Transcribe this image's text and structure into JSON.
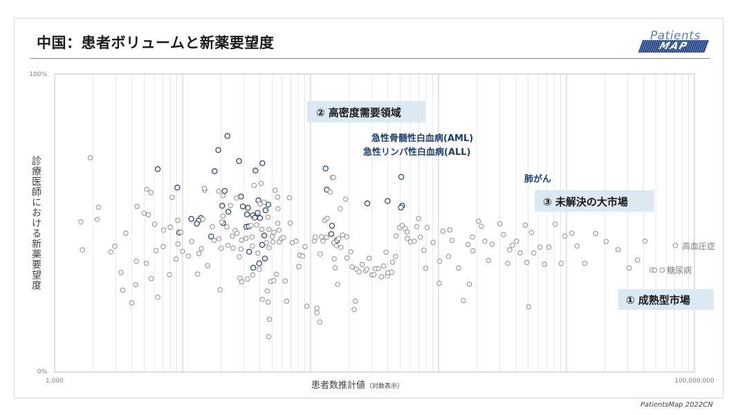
{
  "title": "中国：患者ボリュームと新薬要望度",
  "logo": {
    "top": "Patients",
    "bottom": "MAP"
  },
  "footer": "PatientsMap 2022CN",
  "colors": {
    "highlight": "#1f3e6e",
    "normal": "#8c8c8c",
    "label_box": "#dce9f2",
    "grid": "#dcdcdc"
  },
  "chart_data": {
    "type": "scatter",
    "xlabel": "患者数推計値",
    "xlabel_note": "（対数表示）",
    "ylabel": "診療医師における新薬要望度",
    "x_scale": "log",
    "xlim": [
      1000,
      100000000
    ],
    "ylim": [
      0,
      100
    ],
    "x_tick_labels": [
      "1,000",
      "100,000,000"
    ],
    "y_tick_labels": [
      "0%",
      "100%"
    ],
    "grid": "vertical log minor gridlines",
    "zone_labels": [
      "② 高密度需要領域",
      "③ 未解決の大市場",
      "① 成熟型市場"
    ],
    "annotations": [
      {
        "text": "急性骨髄性白血病(AML)",
        "x": 22400,
        "y": 79.2
      },
      {
        "text": "急性リンパ性白血病(ALL)",
        "x": 19000,
        "y": 74.5
      },
      {
        "text": "肺がん",
        "x": 511000,
        "y": 65.5
      },
      {
        "text": "高血圧症",
        "x": 71000000,
        "y": 42.5
      },
      {
        "text": "糖尿病",
        "x": 49000000,
        "y": 34.2
      }
    ],
    "series": [
      {
        "points": [
          [
            22400,
            79.2
          ],
          [
            19000,
            74.5
          ],
          [
            511000,
            65.5
          ],
          [
            17800,
            67.4
          ],
          [
            6400,
            68.1
          ],
          [
            27600,
            70.8
          ],
          [
            37100,
            67.6
          ],
          [
            42000,
            70.1
          ],
          [
            131000,
            68.3
          ],
          [
            9100,
            61.9
          ],
          [
            21300,
            60.8
          ],
          [
            28600,
            58.9
          ],
          [
            39100,
            57.6
          ],
          [
            134000,
            61.2
          ],
          [
            278000,
            56.6
          ],
          [
            20400,
            55.8
          ],
          [
            32400,
            55.1
          ],
          [
            46800,
            56.2
          ],
          [
            13900,
            51.7
          ],
          [
            20700,
            50.0
          ],
          [
            31500,
            48.7
          ],
          [
            13300,
            50.8
          ],
          [
            12900,
            49.8
          ],
          [
            11700,
            51.4
          ],
          [
            9400,
            46.8
          ],
          [
            16700,
            45.5
          ],
          [
            145000,
            46.3
          ],
          [
            147000,
            49.1
          ],
          [
            161000,
            44.2
          ],
          [
            33100,
            40.4
          ],
          [
            41800,
            42.7
          ],
          [
            44000,
            38.1
          ],
          [
            39700,
            36.5
          ],
          [
            35700,
            35.0
          ],
          [
            520000,
            55.8
          ],
          [
            508000,
            55.2
          ],
          [
            400000,
            57.4
          ],
          [
            31900,
            52.9
          ],
          [
            38600,
            53.4
          ],
          [
            44500,
            54.3
          ],
          [
            40300,
            51.7
          ],
          [
            29600,
            55.6
          ],
          [
            35400,
            52.6
          ],
          [
            36700,
            51.8
          ],
          [
            22800,
            53.8
          ],
          [
            43500,
            45.8
          ],
          [
            33000,
            48.9
          ]
        ]
      },
      {
        "points": [
          [
            1900,
            71.9
          ],
          [
            2200,
            55.3
          ],
          [
            2150,
            51.2
          ],
          [
            1600,
            50.4
          ],
          [
            1650,
            41.0
          ],
          [
            2750,
            40.3
          ],
          [
            2950,
            42.2
          ],
          [
            3300,
            33.4
          ],
          [
            3600,
            46.6
          ],
          [
            4000,
            23.2
          ],
          [
            4350,
            37.2
          ],
          [
            4300,
            29.3
          ],
          [
            4400,
            55.6
          ],
          [
            3400,
            27.5
          ],
          [
            5250,
            61.3
          ],
          [
            5650,
            60.2
          ],
          [
            5400,
            52.8
          ],
          [
            5200,
            36.5
          ],
          [
            5700,
            31.4
          ],
          [
            5000,
            53.3
          ],
          [
            6050,
            49.6
          ],
          [
            6200,
            40.8
          ],
          [
            6400,
            25.1
          ],
          [
            7100,
            47.6
          ],
          [
            7050,
            42.1
          ],
          [
            7900,
            32.7
          ],
          [
            8300,
            58.6
          ],
          [
            8000,
            48.6
          ],
          [
            9150,
            50.9
          ],
          [
            9200,
            43.0
          ],
          [
            9700,
            47.0
          ],
          [
            8900,
            37.9
          ],
          [
            10000,
            40.5
          ],
          [
            11100,
            38.9
          ],
          [
            11800,
            43.8
          ],
          [
            13100,
            32.9
          ],
          [
            13400,
            39.8
          ],
          [
            14000,
            41.4
          ],
          [
            14400,
            51.3
          ],
          [
            14900,
            61.0
          ],
          [
            15700,
            35.7
          ],
          [
            14800,
            61.6
          ],
          [
            17100,
            48.8
          ],
          [
            17600,
            44.2
          ],
          [
            19200,
            44.7
          ],
          [
            20200,
            50.4
          ],
          [
            20000,
            41.5
          ],
          [
            19600,
            27.6
          ],
          [
            19100,
            60.7
          ],
          [
            20700,
            59.2
          ],
          [
            20700,
            52.4
          ],
          [
            22200,
            48.7
          ],
          [
            22600,
            42.5
          ],
          [
            23700,
            55.9
          ],
          [
            24500,
            45.6
          ],
          [
            24800,
            41.6
          ],
          [
            25800,
            47.5
          ],
          [
            26400,
            58.4
          ],
          [
            26600,
            46.6
          ],
          [
            27800,
            38.7
          ],
          [
            28900,
            44.3
          ],
          [
            28100,
            31.5
          ],
          [
            29000,
            30.3
          ],
          [
            28600,
            41.3
          ],
          [
            31300,
            44.9
          ],
          [
            32100,
            31.2
          ],
          [
            34200,
            49.2
          ],
          [
            34900,
            45.3
          ],
          [
            35100,
            42.3
          ],
          [
            36200,
            62.6
          ],
          [
            35300,
            32.6
          ],
          [
            37900,
            49.4
          ],
          [
            38800,
            39.9
          ],
          [
            39800,
            34.5
          ],
          [
            41100,
            63.3
          ],
          [
            40300,
            56.4
          ],
          [
            41700,
            47.9
          ],
          [
            41900,
            24.4
          ],
          [
            43300,
            57.0
          ],
          [
            45200,
            43.4
          ],
          [
            47200,
            47.9
          ],
          [
            46500,
            52.0
          ],
          [
            47400,
            41.7
          ],
          [
            50100,
            45.5
          ],
          [
            50800,
            43.7
          ],
          [
            48800,
            30.4
          ],
          [
            47800,
            17.7
          ],
          [
            47100,
            11.9
          ],
          [
            45900,
            27.2
          ],
          [
            46600,
            23.5
          ],
          [
            51700,
            30.7
          ],
          [
            51600,
            46.9
          ],
          [
            52900,
            61.0
          ],
          [
            55300,
            58.7
          ],
          [
            55700,
            54.8
          ],
          [
            55400,
            49.9
          ],
          [
            54100,
            32.8
          ],
          [
            56600,
            47.6
          ],
          [
            57000,
            43.7
          ],
          [
            59000,
            44.8
          ],
          [
            61400,
            45.1
          ],
          [
            63400,
            30.6
          ],
          [
            65000,
            23.8
          ],
          [
            68400,
            58.5
          ],
          [
            69300,
            50.0
          ],
          [
            71900,
            43.4
          ],
          [
            77000,
            43.9
          ],
          [
            80900,
            35.4
          ],
          [
            82700,
            39.2
          ],
          [
            86500,
            38.9
          ],
          [
            90400,
            42.1
          ],
          [
            93500,
            22.1
          ],
          [
            107000,
            44.0
          ],
          [
            109000,
            45.3
          ],
          [
            112000,
            21.4
          ],
          [
            112000,
            19.9
          ],
          [
            118000,
            16.8
          ],
          [
            119000,
            39.6
          ],
          [
            122000,
            45.4
          ],
          [
            125000,
            43.9
          ],
          [
            129000,
            50.9
          ],
          [
            133000,
            45.2
          ],
          [
            135000,
            51.6
          ],
          [
            143000,
            60.4
          ],
          [
            148000,
            65.3
          ],
          [
            151000,
            65.3
          ],
          [
            152000,
            43.4
          ],
          [
            153000,
            38.0
          ],
          [
            156000,
            35.0
          ],
          [
            159000,
            42.4
          ],
          [
            163000,
            29.4
          ],
          [
            166000,
            44.8
          ],
          [
            171000,
            54.8
          ],
          [
            173000,
            41.8
          ],
          [
            178000,
            46.0
          ],
          [
            188000,
            58.0
          ],
          [
            192000,
            45.4
          ],
          [
            193000,
            38.3
          ],
          [
            206000,
            40.4
          ],
          [
            212000,
            35.3
          ],
          [
            219000,
            21.0
          ],
          [
            224000,
            23.8
          ],
          [
            228000,
            34.5
          ],
          [
            240000,
            33.6
          ],
          [
            253000,
            36.1
          ],
          [
            270000,
            34.0
          ],
          [
            276000,
            34.5
          ],
          [
            287000,
            38.2
          ],
          [
            301000,
            32.6
          ],
          [
            313000,
            32.7
          ],
          [
            321000,
            34.7
          ],
          [
            339000,
            34.7
          ],
          [
            359000,
            32.0
          ],
          [
            373000,
            35.6
          ],
          [
            389000,
            40.2
          ],
          [
            400000,
            32.3
          ],
          [
            402000,
            33.3
          ],
          [
            430000,
            33.5
          ],
          [
            437000,
            36.9
          ],
          [
            461000,
            38.8
          ],
          [
            467000,
            45.7
          ],
          [
            497000,
            48.5
          ],
          [
            521000,
            49.2
          ],
          [
            549000,
            48.2
          ],
          [
            568000,
            47.0
          ],
          [
            571000,
            44.8
          ],
          [
            604000,
            43.7
          ],
          [
            646000,
            43.9
          ],
          [
            676000,
            48.8
          ],
          [
            699000,
            51.5
          ],
          [
            721000,
            45.3
          ],
          [
            767000,
            40.9
          ],
          [
            795000,
            34.8
          ],
          [
            814000,
            48.5
          ],
          [
            908000,
            43.5
          ],
          [
            1012000,
            29.8
          ],
          [
            1022000,
            37.2
          ],
          [
            1083000,
            47.3
          ],
          [
            1197000,
            38.8
          ],
          [
            1227000,
            47.7
          ],
          [
            1280000,
            44.2
          ],
          [
            1436000,
            34.9
          ],
          [
            1565000,
            24.0
          ],
          [
            1705000,
            42.8
          ],
          [
            1742000,
            29.5
          ],
          [
            1855000,
            40.7
          ],
          [
            2048000,
            50.6
          ],
          [
            1841000,
            45.3
          ],
          [
            2166000,
            48.9
          ],
          [
            2301000,
            43.9
          ],
          [
            2455000,
            37.5
          ],
          [
            2628000,
            42.9
          ],
          [
            3012000,
            49.8
          ],
          [
            3223000,
            46.1
          ],
          [
            3470000,
            36.5
          ],
          [
            3600000,
            41.0
          ],
          [
            3784000,
            42.5
          ],
          [
            4075000,
            43.9
          ],
          [
            4341000,
            40.0
          ],
          [
            4761000,
            49.3
          ],
          [
            4906000,
            36.8
          ],
          [
            5068000,
            21.9
          ],
          [
            5316000,
            46.8
          ],
          [
            5549000,
            39.9
          ],
          [
            6227000,
            41.9
          ],
          [
            6729000,
            36.2
          ],
          [
            7270000,
            41.9
          ],
          [
            8173000,
            49.6
          ],
          [
            9088000,
            36.5
          ],
          [
            9700000,
            45.6
          ],
          [
            11000000,
            46.6
          ],
          [
            12100000,
            42.3
          ],
          [
            13900000,
            36.5
          ],
          [
            16900000,
            46.5
          ],
          [
            20400000,
            43.8
          ],
          [
            25300000,
            41.1
          ],
          [
            30900000,
            34.9
          ],
          [
            35900000,
            37.6
          ],
          [
            41100000,
            43.9
          ],
          [
            46600000,
            34.3
          ],
          [
            71000000,
            42.5
          ],
          [
            49000000,
            34.2
          ],
          [
            56000000,
            34.2
          ]
        ]
      }
    ]
  }
}
